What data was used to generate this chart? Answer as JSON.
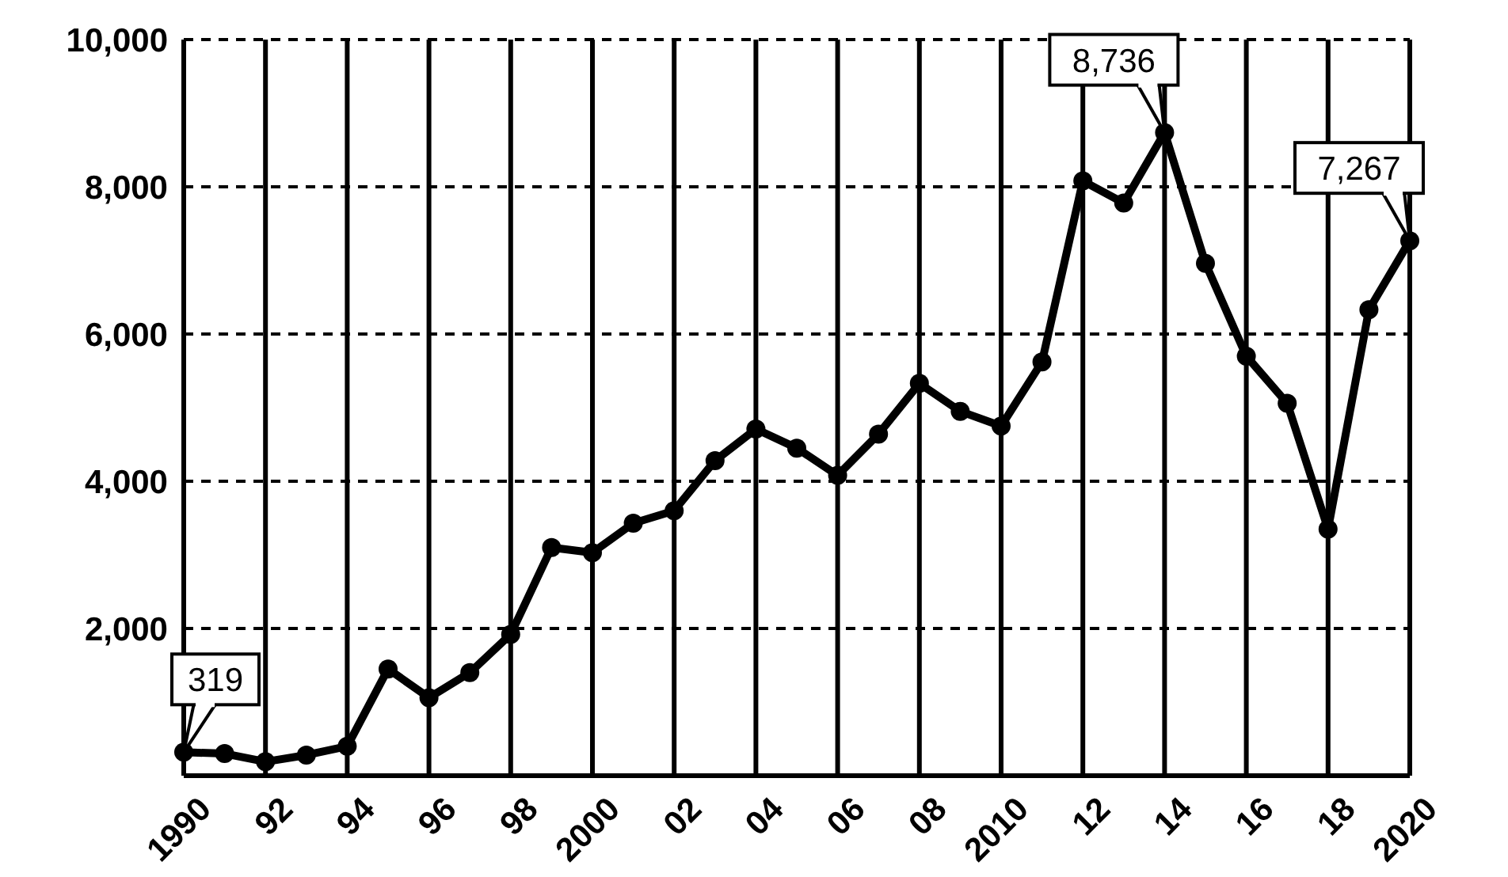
{
  "chart_data": {
    "type": "line",
    "x": [
      1990,
      1991,
      1992,
      1993,
      1994,
      1995,
      1996,
      1997,
      1998,
      1999,
      2000,
      2001,
      2002,
      2003,
      2004,
      2005,
      2006,
      2007,
      2008,
      2009,
      2010,
      2011,
      2012,
      2013,
      2014,
      2015,
      2016,
      2017,
      2018,
      2019,
      2020
    ],
    "series": [
      {
        "color": "#000000",
        "values": [
          319,
          300,
          190,
          280,
          400,
          1450,
          1060,
          1400,
          1920,
          3100,
          3030,
          3430,
          3600,
          4280,
          4710,
          4450,
          4080,
          4640,
          5330,
          4950,
          4750,
          5620,
          8080,
          7780,
          8736,
          6960,
          5700,
          5060,
          3350,
          6330,
          7267
        ]
      }
    ],
    "xlim": [
      1990,
      2020
    ],
    "xticks": [
      {
        "value": 1990,
        "label": "1990"
      },
      {
        "value": 1992,
        "label": "92"
      },
      {
        "value": 1994,
        "label": "94"
      },
      {
        "value": 1996,
        "label": "96"
      },
      {
        "value": 1998,
        "label": "98"
      },
      {
        "value": 2000,
        "label": "2000"
      },
      {
        "value": 2002,
        "label": "02"
      },
      {
        "value": 2004,
        "label": "04"
      },
      {
        "value": 2006,
        "label": "06"
      },
      {
        "value": 2008,
        "label": "08"
      },
      {
        "value": 2010,
        "label": "2010"
      },
      {
        "value": 2012,
        "label": "12"
      },
      {
        "value": 2014,
        "label": "14"
      },
      {
        "value": 2016,
        "label": "16"
      },
      {
        "value": 2018,
        "label": "18"
      },
      {
        "value": 2020,
        "label": "2020"
      }
    ],
    "ylim": [
      0,
      10000
    ],
    "yticks": [
      {
        "value": 2000,
        "label": "2,000"
      },
      {
        "value": 4000,
        "label": "4,000"
      },
      {
        "value": 6000,
        "label": "6,000"
      },
      {
        "value": 8000,
        "label": "8,000"
      },
      {
        "value": 10000,
        "label": "10,000"
      }
    ],
    "grid": true,
    "marker": "circle",
    "line_style": "solid",
    "annotations": [
      {
        "text": "319",
        "x": 1990,
        "y": 319
      },
      {
        "text": "8,736",
        "x": 2014,
        "y": 8736
      },
      {
        "text": "7,267",
        "x": 2020,
        "y": 7267
      }
    ]
  }
}
